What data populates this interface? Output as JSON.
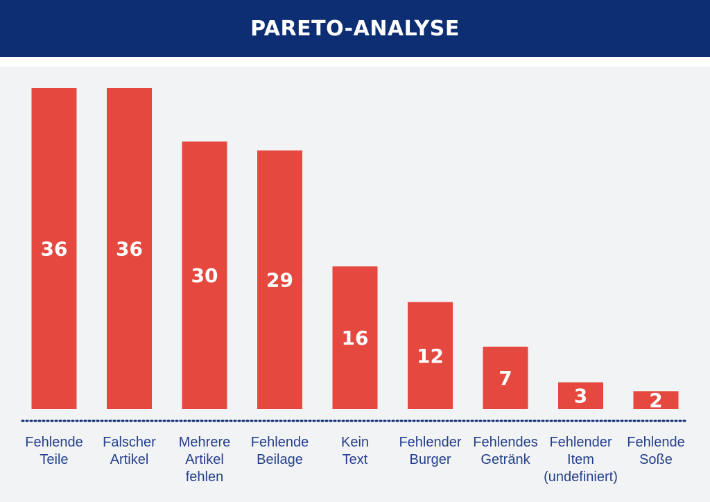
{
  "header": {
    "title": "PARETO-ANALYSE"
  },
  "colors": {
    "header_bg": "#0d2e73",
    "bar": "#e5483f",
    "panel_bg": "#f2f3f5",
    "baseline": "#0d2e73"
  },
  "chart_data": {
    "type": "bar",
    "title": "PARETO-ANALYSE",
    "categories": [
      [
        "Fehlende",
        "Teile"
      ],
      [
        "Falscher",
        "Artikel"
      ],
      [
        "Mehrere",
        "Artikel",
        "fehlen"
      ],
      [
        "Fehlende",
        "Beilage"
      ],
      [
        "Kein",
        "Text"
      ],
      [
        "Fehlender",
        "Burger"
      ],
      [
        "Fehlendes",
        "Getränk"
      ],
      [
        "Fehlender",
        "Item",
        "(undefiniert)"
      ],
      [
        "Fehlende",
        "Soße"
      ]
    ],
    "values": [
      36,
      36,
      30,
      29,
      16,
      12,
      7,
      3,
      2
    ],
    "ylim": [
      0,
      36
    ],
    "grid": false,
    "data_labels": true
  }
}
